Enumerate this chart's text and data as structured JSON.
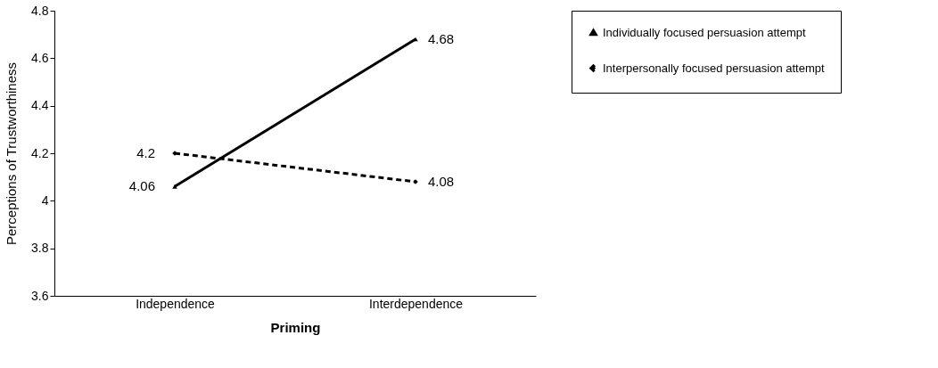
{
  "chart_data": {
    "type": "line",
    "xlabel": "Priming",
    "ylabel": "Perceptions of Trustworthiness",
    "categories": [
      "Independence",
      "Interdependence"
    ],
    "series": [
      {
        "name": "Individually focused persuasion attempt",
        "color": "#000000",
        "values": [
          4.06,
          4.68
        ],
        "line_style": "solid",
        "marker": "triangle"
      },
      {
        "name": "Interpersonally focused persuasion attempt",
        "color": "#000000",
        "values": [
          4.2,
          4.08
        ],
        "line_style": "dashed",
        "marker": "diamond"
      }
    ],
    "ylim": [
      3.6,
      4.8
    ],
    "yticks": [
      3.6,
      3.8,
      {
        "value": 4,
        "label": "4"
      },
      4.2,
      4.4,
      4.6,
      4.8
    ],
    "grid": false,
    "legend": "right",
    "data_labels": true
  }
}
